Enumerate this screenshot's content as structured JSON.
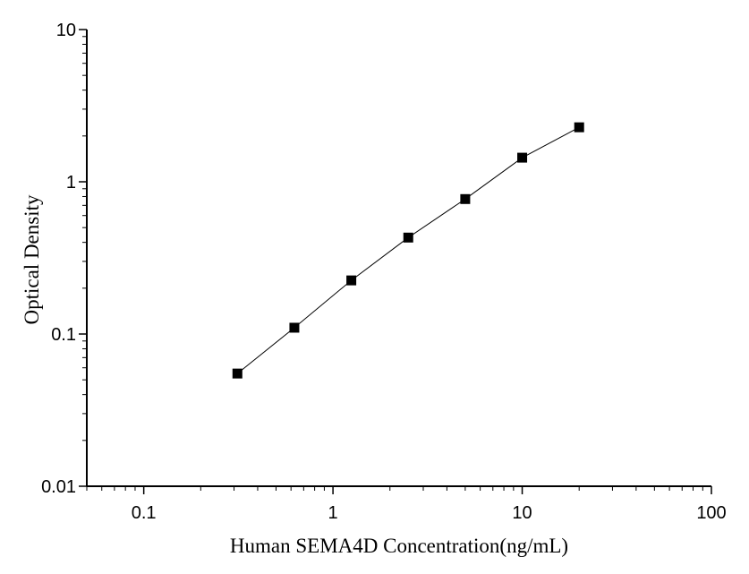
{
  "chart_data": {
    "type": "scatter",
    "xlabel": "Human SEMA4D Concentration(ng/mL)",
    "ylabel": "Optical Density",
    "x_scale": "log",
    "y_scale": "log",
    "xlim": [
      0.05,
      100
    ],
    "ylim": [
      0.01,
      10
    ],
    "x_ticks": [
      {
        "value": 0.1,
        "label": "0.1"
      },
      {
        "value": 1,
        "label": "1"
      },
      {
        "value": 10,
        "label": "10"
      },
      {
        "value": 100,
        "label": "100"
      }
    ],
    "y_ticks": [
      {
        "value": 0.01,
        "label": "0.01"
      },
      {
        "value": 0.1,
        "label": "0.1"
      },
      {
        "value": 1,
        "label": "1"
      },
      {
        "value": 10,
        "label": "10"
      }
    ],
    "grid": false,
    "legend": "none",
    "series": [
      {
        "marker": "square",
        "color": "#000000",
        "fit_line": true,
        "x": [
          0.3125,
          0.625,
          1.25,
          2.5,
          5,
          10,
          20
        ],
        "y": [
          0.055,
          0.11,
          0.225,
          0.43,
          0.77,
          1.44,
          2.28
        ]
      }
    ]
  }
}
